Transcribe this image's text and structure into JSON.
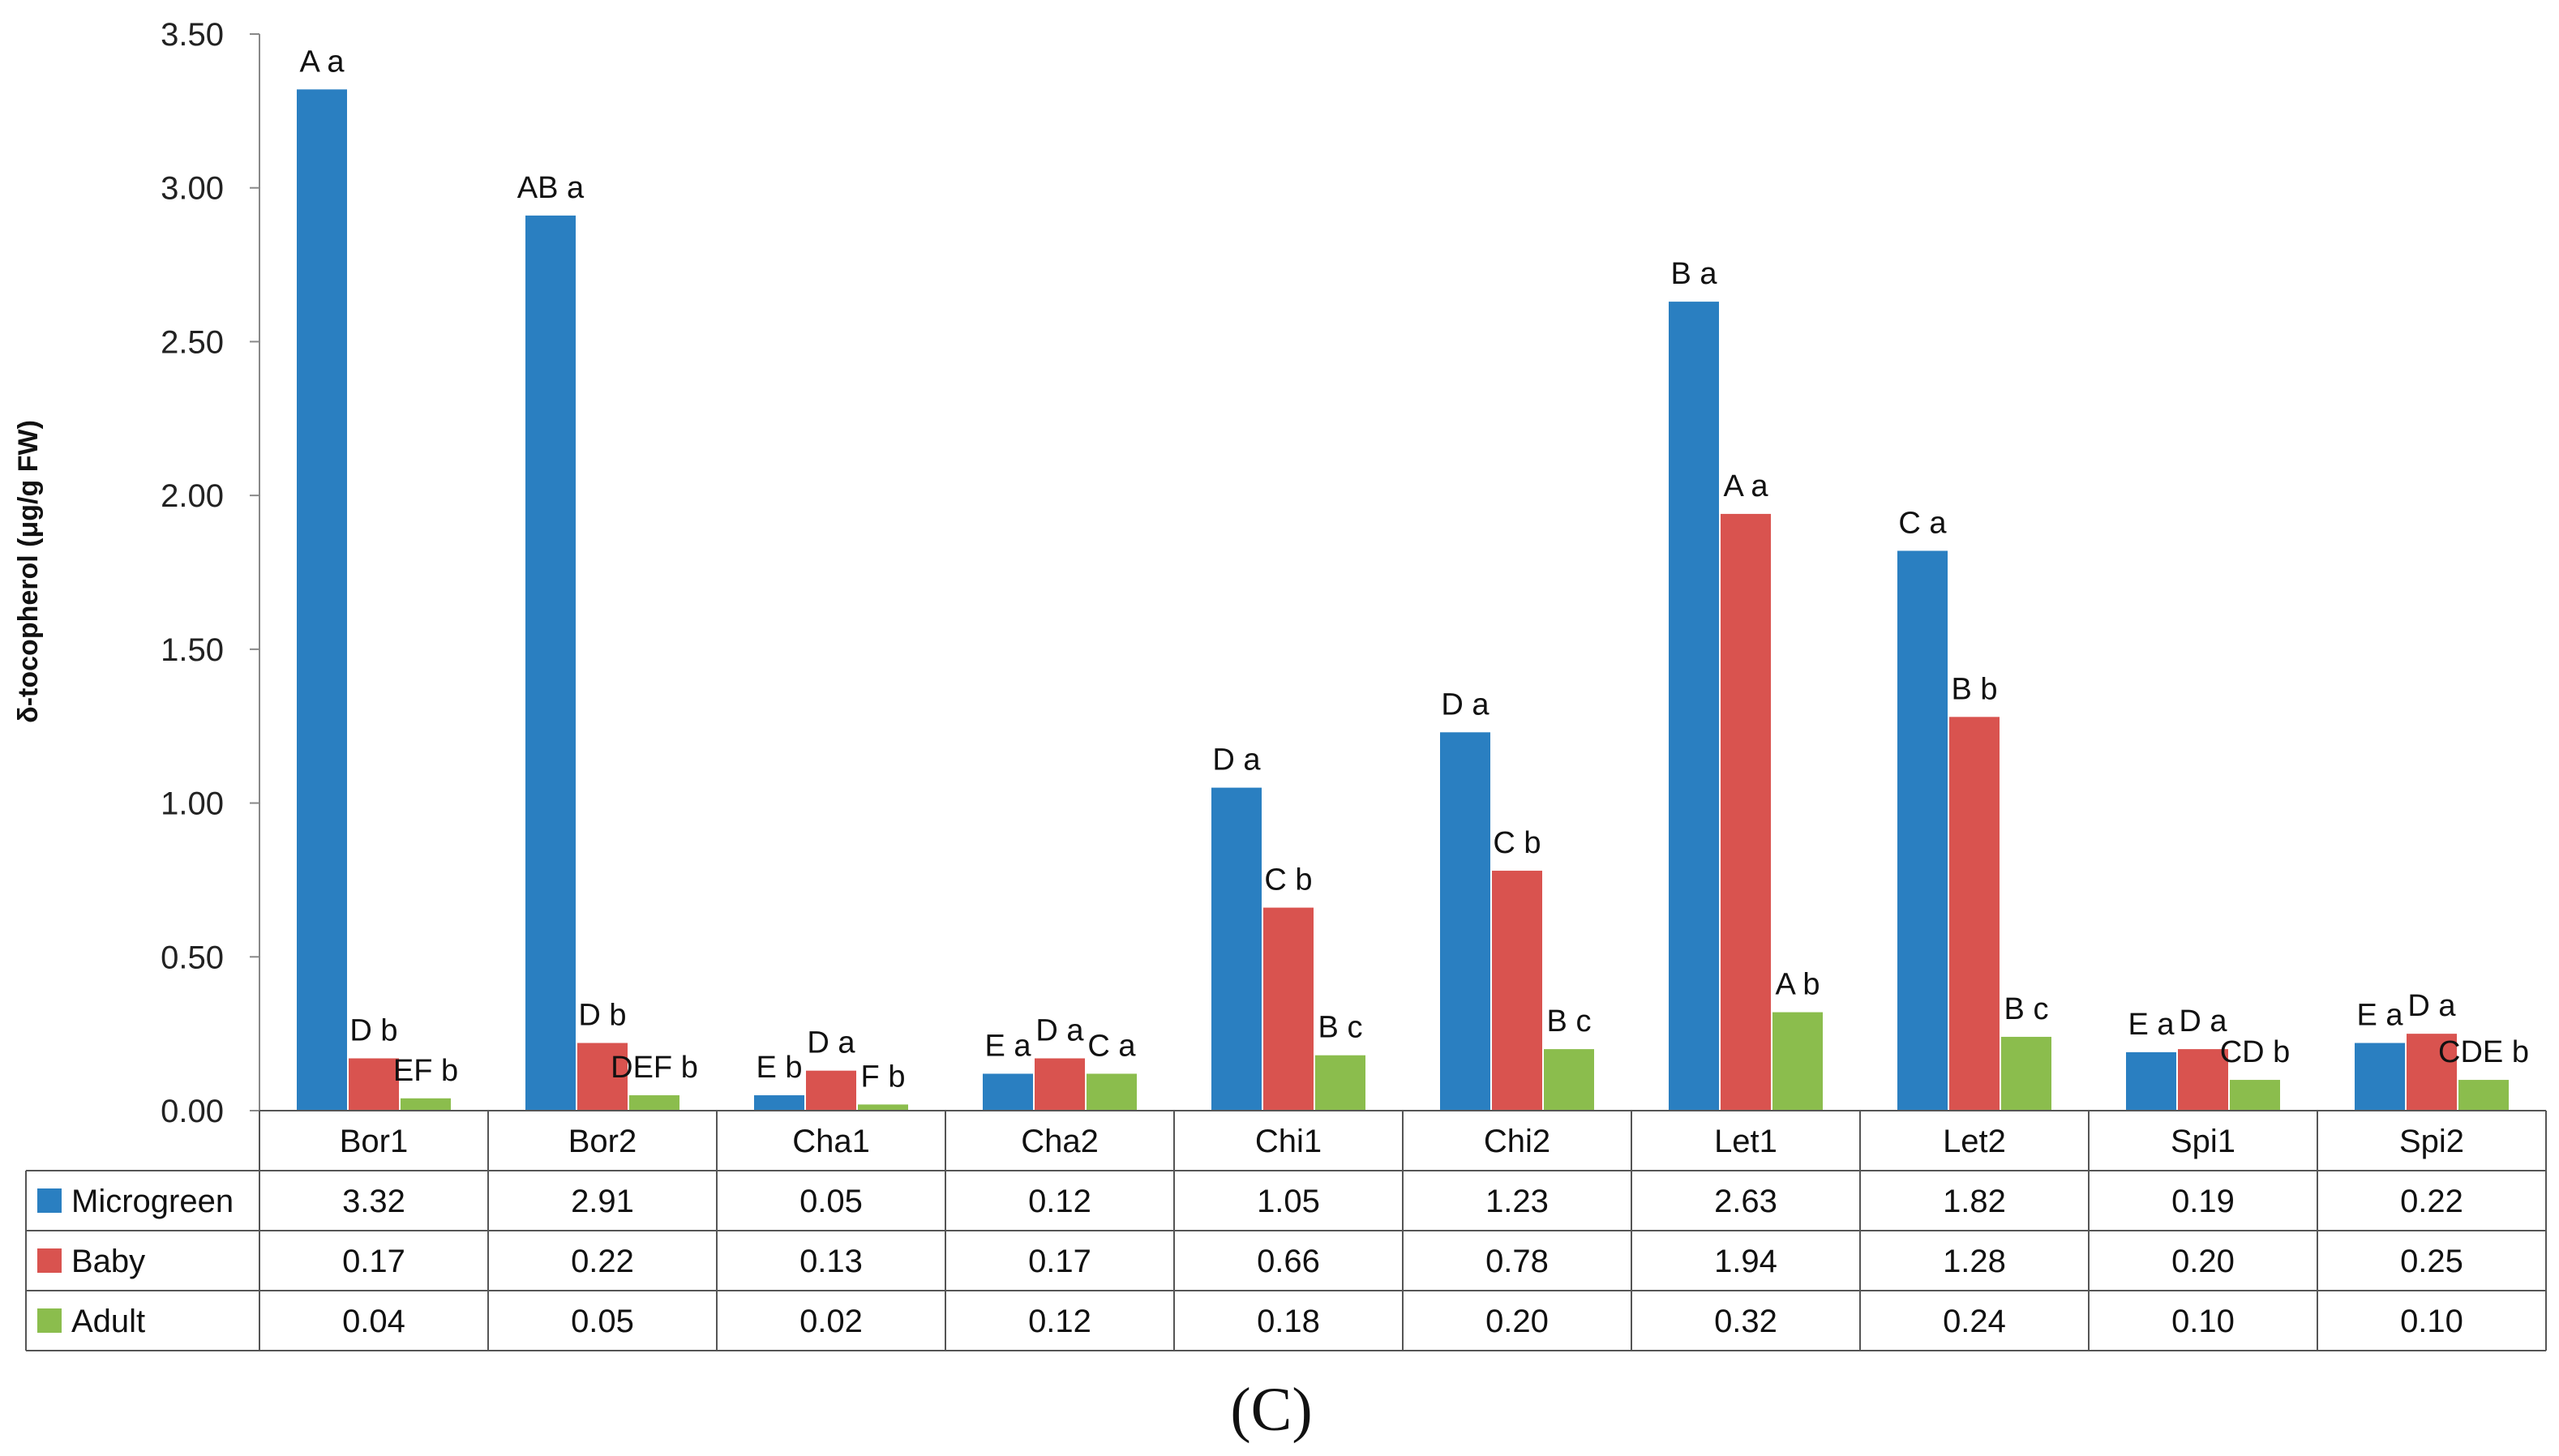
{
  "chart_data": {
    "type": "bar",
    "ylabel": "δ-tocopherol (μg/g FW)",
    "ylim": [
      0,
      3.5
    ],
    "yticks": [
      "0.00",
      "0.50",
      "1.00",
      "1.50",
      "2.00",
      "2.50",
      "3.00",
      "3.50"
    ],
    "categories": [
      "Bor1",
      "Bor2",
      "Cha1",
      "Cha2",
      "Chi1",
      "Chi2",
      "Let1",
      "Let2",
      "Spi1",
      "Spi2"
    ],
    "series": [
      {
        "name": "Microgreen",
        "color": "#2a7fc1",
        "values": [
          3.32,
          2.91,
          0.05,
          0.12,
          1.05,
          1.23,
          2.63,
          1.82,
          0.19,
          0.22
        ],
        "table_values": [
          "3.32",
          "2.91",
          "0.05",
          "0.12",
          "1.05",
          "1.23",
          "2.63",
          "1.82",
          "0.19",
          "0.22"
        ],
        "labels": [
          "A a",
          "AB a",
          "E b",
          "E a",
          "D a",
          "D a",
          "B a",
          "C a",
          "E a",
          "E a"
        ]
      },
      {
        "name": "Baby",
        "color": "#d9534f",
        "values": [
          0.17,
          0.22,
          0.13,
          0.17,
          0.66,
          0.78,
          1.94,
          1.28,
          0.2,
          0.25
        ],
        "table_values": [
          "0.17",
          "0.22",
          "0.13",
          "0.17",
          "0.66",
          "0.78",
          "1.94",
          "1.28",
          "0.20",
          "0.25"
        ],
        "labels": [
          "D b",
          "D b",
          "D a",
          "D a",
          "C b",
          "C b",
          "A a",
          "B b",
          "D a",
          "D a"
        ]
      },
      {
        "name": "Adult",
        "color": "#8bbd4d",
        "values": [
          0.04,
          0.05,
          0.02,
          0.12,
          0.18,
          0.2,
          0.32,
          0.24,
          0.1,
          0.1
        ],
        "table_values": [
          "0.04",
          "0.05",
          "0.02",
          "0.12",
          "0.18",
          "0.20",
          "0.32",
          "0.24",
          "0.10",
          "0.10"
        ],
        "labels": [
          "EF b",
          "DEF b",
          "F b",
          "C a",
          "B c",
          "B c",
          "A b",
          "B c",
          "CD b",
          "CDE b"
        ]
      }
    ],
    "caption": "(C)"
  }
}
